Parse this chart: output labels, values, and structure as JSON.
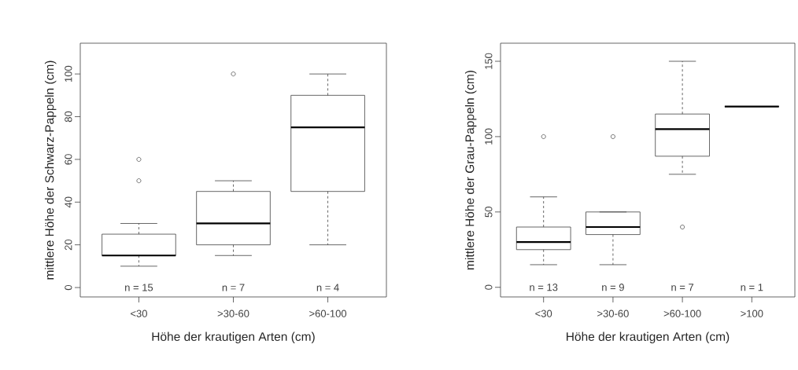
{
  "chart_data": [
    {
      "type": "box",
      "xlabel": "Höhe der krautigen Arten (cm)",
      "ylabel": "mittlere Höhe der Schwarz-Pappeln (cm)",
      "categories": [
        "<30",
        ">30-60",
        ">60-100"
      ],
      "boxes": [
        {
          "low": 10,
          "q1": 15,
          "median": 15,
          "q3": 25,
          "high": 30,
          "outliers": [
            50,
            60
          ]
        },
        {
          "low": 15,
          "q1": 20,
          "median": 30,
          "q3": 45,
          "high": 50,
          "outliers": [
            100
          ]
        },
        {
          "low": 20,
          "q1": 45,
          "median": 75,
          "q3": 90,
          "high": 100
        }
      ],
      "ylim": [
        -4.4,
        114.4
      ],
      "yticks": [
        0,
        20,
        40,
        60,
        80,
        100
      ],
      "annotations": [
        "n = 15",
        "n = 7",
        "n = 4"
      ]
    },
    {
      "type": "box",
      "xlabel": "Höhe der krautigen Arten (cm)",
      "ylabel": "mittlere Höhe der Grau-Pappeln (cm)",
      "categories": [
        "<30",
        ">30-60",
        ">60-100",
        ">100"
      ],
      "boxes": [
        {
          "low": 15,
          "q1": 25,
          "median": 30,
          "q3": 40,
          "high": 60,
          "outliers": [
            100
          ]
        },
        {
          "low": 15,
          "q1": 35,
          "median": 40,
          "q3": 50,
          "high": 50,
          "outliers": [
            100
          ]
        },
        {
          "low": 75,
          "q1": 87,
          "median": 105,
          "q3": 115,
          "high": 150,
          "outliers": [
            40
          ]
        },
        {
          "low": 120,
          "q1": 120,
          "median": 120,
          "q3": 120,
          "high": 120
        }
      ],
      "ylim": [
        -6.4,
        162
      ],
      "yticks": [
        0,
        50,
        100,
        150
      ],
      "annotations": [
        "n = 13",
        "n = 9",
        "n = 7",
        "n = 1"
      ]
    }
  ]
}
